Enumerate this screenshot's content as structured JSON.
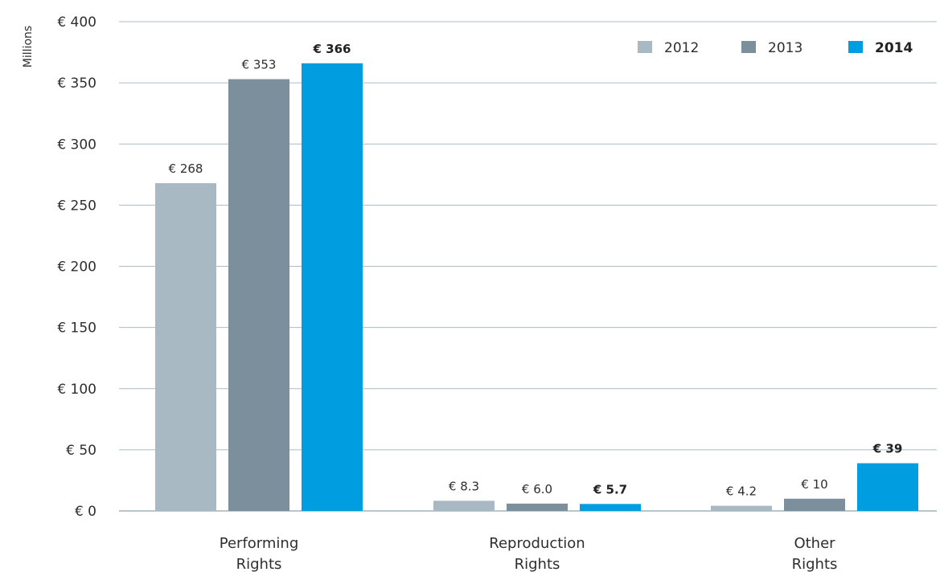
{
  "chart_data": {
    "type": "bar",
    "ylabel": "Millions",
    "ylim": [
      0,
      400
    ],
    "yticks": [
      0,
      50,
      100,
      150,
      200,
      250,
      300,
      350,
      400
    ],
    "ytick_labels": [
      "€ 0",
      "€ 50",
      "€ 100",
      "€ 150",
      "€ 200",
      "€ 250",
      "€ 300",
      "€ 350",
      "€ 400"
    ],
    "grid": true,
    "legend_position": "top-right",
    "categories": [
      [
        "Performing",
        "Rights"
      ],
      [
        "Reproduction",
        "Rights"
      ],
      [
        "Other",
        "Rights"
      ]
    ],
    "series": [
      {
        "name": "2012",
        "color": "#a9b9c4",
        "bold": false,
        "values": [
          268,
          8.3,
          4.2
        ],
        "labels": [
          "€ 268",
          "€ 8.3",
          "€ 4.2"
        ]
      },
      {
        "name": "2013",
        "color": "#7b8f9c",
        "bold": false,
        "values": [
          353,
          6.0,
          10
        ],
        "labels": [
          "€ 353",
          "€ 6.0",
          "€ 10"
        ]
      },
      {
        "name": "2014",
        "color": "#009ee0",
        "bold": true,
        "values": [
          366,
          5.7,
          39
        ],
        "labels": [
          "€ 366",
          "€ 5.7",
          "€ 39"
        ]
      }
    ]
  }
}
